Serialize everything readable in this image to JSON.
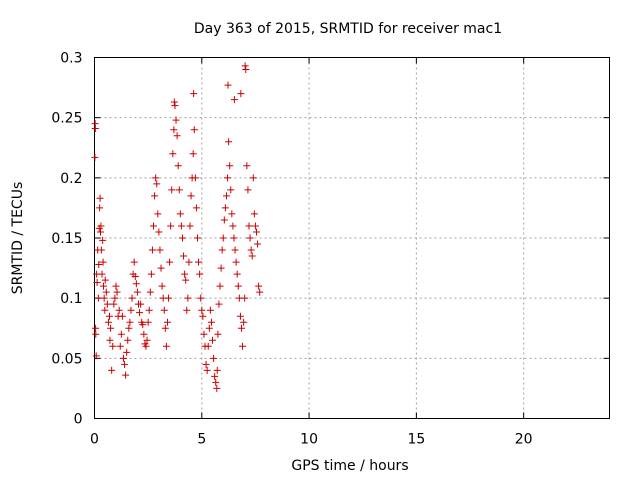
{
  "chart_data": {
    "type": "scatter",
    "title": "Day 363 of 2015, SRMTID for receiver mac1",
    "xlabel": "GPS time / hours",
    "ylabel": "SRMTID / TECUs",
    "xlim": [
      0,
      24
    ],
    "ylim": [
      0,
      0.3
    ],
    "xticks": [
      0,
      5,
      10,
      15,
      20
    ],
    "xtick_labels": [
      "0",
      "5",
      "10",
      "15",
      "20"
    ],
    "yticks": [
      0,
      0.05,
      0.1,
      0.15,
      0.2,
      0.25,
      0.3
    ],
    "ytick_labels": [
      "0",
      "0.05",
      "0.1",
      "0.15",
      "0.2",
      "0.25",
      "0.3"
    ],
    "grid": true,
    "marker": "plus",
    "marker_color": "#cc0000",
    "series": [
      {
        "name": "SRMTID",
        "points": [
          [
            0.02,
            0.217
          ],
          [
            0.03,
            0.245
          ],
          [
            0.04,
            0.241
          ],
          [
            0.05,
            0.075
          ],
          [
            0.06,
            0.07
          ],
          [
            0.08,
            0.052
          ],
          [
            0.1,
            0.12
          ],
          [
            0.12,
            0.113
          ],
          [
            0.15,
            0.14
          ],
          [
            0.18,
            0.1
          ],
          [
            0.2,
            0.128
          ],
          [
            0.22,
            0.158
          ],
          [
            0.24,
            0.175
          ],
          [
            0.26,
            0.183
          ],
          [
            0.28,
            0.155
          ],
          [
            0.3,
            0.16
          ],
          [
            0.32,
            0.14
          ],
          [
            0.35,
            0.12
          ],
          [
            0.38,
            0.148
          ],
          [
            0.4,
            0.13
          ],
          [
            0.42,
            0.11
          ],
          [
            0.45,
            0.1
          ],
          [
            0.48,
            0.09
          ],
          [
            0.5,
            0.115
          ],
          [
            0.55,
            0.105
          ],
          [
            0.6,
            0.095
          ],
          [
            0.65,
            0.08
          ],
          [
            0.7,
            0.085
          ],
          [
            0.72,
            0.065
          ],
          [
            0.75,
            0.075
          ],
          [
            0.8,
            0.04
          ],
          [
            0.85,
            0.06
          ],
          [
            0.9,
            0.095
          ],
          [
            0.95,
            0.1
          ],
          [
            1.0,
            0.11
          ],
          [
            1.05,
            0.105
          ],
          [
            1.1,
            0.085
          ],
          [
            1.15,
            0.09
          ],
          [
            1.2,
            0.06
          ],
          [
            1.25,
            0.07
          ],
          [
            1.3,
            0.085
          ],
          [
            1.35,
            0.05
          ],
          [
            1.4,
            0.045
          ],
          [
            1.45,
            0.036
          ],
          [
            1.5,
            0.055
          ],
          [
            1.55,
            0.065
          ],
          [
            1.6,
            0.075
          ],
          [
            1.65,
            0.08
          ],
          [
            1.7,
            0.09
          ],
          [
            1.75,
            0.1
          ],
          [
            1.8,
            0.12
          ],
          [
            1.85,
            0.13
          ],
          [
            1.9,
            0.118
          ],
          [
            1.95,
            0.112
          ],
          [
            2.0,
            0.105
          ],
          [
            2.05,
            0.095
          ],
          [
            2.1,
            0.088
          ],
          [
            2.15,
            0.095
          ],
          [
            2.2,
            0.08
          ],
          [
            2.25,
            0.078
          ],
          [
            2.3,
            0.07
          ],
          [
            2.35,
            0.062
          ],
          [
            2.4,
            0.06
          ],
          [
            2.45,
            0.065
          ],
          [
            2.5,
            0.08
          ],
          [
            2.55,
            0.09
          ],
          [
            2.6,
            0.105
          ],
          [
            2.65,
            0.12
          ],
          [
            2.7,
            0.14
          ],
          [
            2.75,
            0.16
          ],
          [
            2.8,
            0.185
          ],
          [
            2.85,
            0.2
          ],
          [
            2.9,
            0.195
          ],
          [
            2.95,
            0.17
          ],
          [
            3.0,
            0.155
          ],
          [
            3.05,
            0.14
          ],
          [
            3.1,
            0.125
          ],
          [
            3.15,
            0.11
          ],
          [
            3.2,
            0.1
          ],
          [
            3.25,
            0.09
          ],
          [
            3.3,
            0.075
          ],
          [
            3.35,
            0.06
          ],
          [
            3.4,
            0.08
          ],
          [
            3.45,
            0.1
          ],
          [
            3.5,
            0.13
          ],
          [
            3.55,
            0.16
          ],
          [
            3.6,
            0.19
          ],
          [
            3.65,
            0.22
          ],
          [
            3.7,
            0.24
          ],
          [
            3.72,
            0.263
          ],
          [
            3.75,
            0.26
          ],
          [
            3.8,
            0.248
          ],
          [
            3.85,
            0.235
          ],
          [
            3.9,
            0.21
          ],
          [
            3.95,
            0.19
          ],
          [
            4.0,
            0.17
          ],
          [
            4.05,
            0.16
          ],
          [
            4.1,
            0.15
          ],
          [
            4.15,
            0.135
          ],
          [
            4.2,
            0.12
          ],
          [
            4.25,
            0.115
          ],
          [
            4.3,
            0.09
          ],
          [
            4.35,
            0.1
          ],
          [
            4.4,
            0.13
          ],
          [
            4.45,
            0.16
          ],
          [
            4.5,
            0.185
          ],
          [
            4.55,
            0.2
          ],
          [
            4.6,
            0.22
          ],
          [
            4.62,
            0.27
          ],
          [
            4.65,
            0.24
          ],
          [
            4.7,
            0.2
          ],
          [
            4.75,
            0.175
          ],
          [
            4.8,
            0.15
          ],
          [
            4.85,
            0.13
          ],
          [
            4.9,
            0.12
          ],
          [
            4.95,
            0.1
          ],
          [
            5.0,
            0.09
          ],
          [
            5.05,
            0.085
          ],
          [
            5.1,
            0.07
          ],
          [
            5.15,
            0.06
          ],
          [
            5.2,
            0.045
          ],
          [
            5.25,
            0.04
          ],
          [
            5.3,
            0.06
          ],
          [
            5.35,
            0.075
          ],
          [
            5.4,
            0.09
          ],
          [
            5.45,
            0.08
          ],
          [
            5.5,
            0.065
          ],
          [
            5.55,
            0.05
          ],
          [
            5.6,
            0.035
          ],
          [
            5.65,
            0.03
          ],
          [
            5.7,
            0.025
          ],
          [
            5.72,
            0.04
          ],
          [
            5.75,
            0.07
          ],
          [
            5.8,
            0.095
          ],
          [
            5.85,
            0.11
          ],
          [
            5.9,
            0.125
          ],
          [
            5.95,
            0.14
          ],
          [
            6.0,
            0.15
          ],
          [
            6.05,
            0.165
          ],
          [
            6.1,
            0.175
          ],
          [
            6.15,
            0.185
          ],
          [
            6.2,
            0.2
          ],
          [
            6.22,
            0.277
          ],
          [
            6.25,
            0.23
          ],
          [
            6.3,
            0.21
          ],
          [
            6.35,
            0.19
          ],
          [
            6.4,
            0.17
          ],
          [
            6.45,
            0.16
          ],
          [
            6.5,
            0.15
          ],
          [
            6.52,
            0.265
          ],
          [
            6.55,
            0.14
          ],
          [
            6.6,
            0.13
          ],
          [
            6.65,
            0.12
          ],
          [
            6.7,
            0.11
          ],
          [
            6.75,
            0.1
          ],
          [
            6.8,
            0.085
          ],
          [
            6.82,
            0.27
          ],
          [
            6.85,
            0.075
          ],
          [
            6.9,
            0.06
          ],
          [
            6.95,
            0.08
          ],
          [
            7.0,
            0.1
          ],
          [
            7.02,
            0.293
          ],
          [
            7.05,
            0.29
          ],
          [
            7.1,
            0.21
          ],
          [
            7.15,
            0.19
          ],
          [
            7.2,
            0.16
          ],
          [
            7.25,
            0.15
          ],
          [
            7.3,
            0.14
          ],
          [
            7.35,
            0.135
          ],
          [
            7.4,
            0.2
          ],
          [
            7.45,
            0.17
          ],
          [
            7.5,
            0.16
          ],
          [
            7.55,
            0.155
          ],
          [
            7.6,
            0.145
          ],
          [
            7.65,
            0.11
          ],
          [
            7.7,
            0.105
          ]
        ]
      }
    ]
  }
}
